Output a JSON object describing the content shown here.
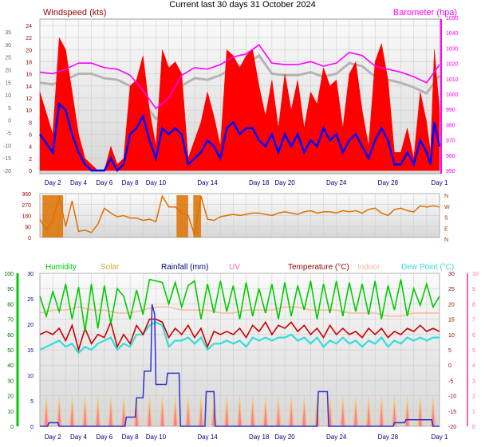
{
  "title": "Current last 30 days 31 October 2024",
  "colors": {
    "wind_avg": "#0000ff",
    "wind_gust": "#ff0000",
    "barometer": "#ff00ff",
    "baro_ghost": "#b4b4b4",
    "wind_dir": "#dd7100",
    "humidity": "#00cc00",
    "solar": "#ccaa33",
    "rain": "#3333cc",
    "uv": "#ff66aa",
    "temperature": "#cc0000",
    "indoor": "#ffb49c",
    "dewpoint": "#33dddd"
  },
  "x_ticks": [
    "Day 2",
    "Day 4",
    "Day 6",
    "Day 8",
    "Day 10",
    "Day 14",
    "Day 18",
    "Day 20",
    "Day 24",
    "Day 28",
    "Day 1"
  ],
  "x_tick_days": [
    2,
    4,
    6,
    8,
    10,
    14,
    18,
    20,
    24,
    28,
    32
  ],
  "chart_data": [
    {
      "type": "line",
      "name": "wind-barometer",
      "title_left": "Windspeed (kts)",
      "title_right": "Barometer (hpa)",
      "y_left_ticks": [
        "24",
        "22",
        "20",
        "18",
        "16",
        "14",
        "12",
        "10",
        "8",
        "6",
        "4",
        "2",
        "0"
      ],
      "y_outer_ticks": [
        "35",
        "30",
        "25",
        "20",
        "15",
        "10",
        "5",
        "0",
        "-5",
        "-10",
        "-15",
        "-20"
      ],
      "y_right_ticks": [
        "1050",
        "1040",
        "1030",
        "1020",
        "1010",
        "1000",
        "990",
        "980",
        "970",
        "960",
        "950"
      ],
      "ylim_left": [
        0,
        25
      ],
      "ylim_right": [
        948,
        1050
      ],
      "series": [
        {
          "name": "gust",
          "x": [
            1.0,
            2.0,
            2.5,
            3.0,
            3.5,
            4.0,
            4.5,
            5.0,
            5.5,
            6.0,
            6.5,
            7.0,
            7.5,
            8.0,
            8.5,
            9.0,
            9.5,
            10.0,
            10.5,
            11.0,
            11.5,
            12.0,
            12.5,
            13.0,
            13.5,
            14.0,
            14.5,
            15.0,
            15.5,
            16.0,
            16.5,
            17.0,
            17.5,
            18.0,
            18.5,
            19.0,
            19.5,
            20.0,
            20.5,
            21.0,
            21.5,
            22.0,
            22.5,
            23.0,
            23.5,
            24.0,
            24.5,
            25.0,
            25.5,
            26.0,
            26.5,
            27.0,
            27.5,
            28.0,
            28.5,
            29.0,
            29.5,
            30.0,
            30.5,
            31.0,
            31.3,
            31.6,
            32.0
          ],
          "values": [
            13,
            6,
            22,
            20,
            13,
            6,
            2,
            1,
            0,
            0,
            4,
            1,
            2,
            14,
            15,
            19,
            10,
            4,
            20,
            17,
            18,
            16,
            2,
            5,
            8,
            13,
            9,
            4,
            20,
            19,
            17,
            19,
            20,
            14,
            9,
            15,
            7,
            16,
            10,
            15,
            7,
            13,
            11,
            17,
            14,
            15,
            7,
            16,
            18,
            10,
            4,
            18,
            21,
            15,
            3,
            3,
            7,
            2,
            13,
            8,
            3,
            20,
            10
          ]
        },
        {
          "name": "average",
          "x": [
            1.0,
            2.0,
            2.5,
            3.0,
            3.5,
            4.0,
            4.5,
            5.0,
            5.5,
            6.0,
            6.5,
            7.0,
            7.5,
            8.0,
            8.5,
            9.0,
            9.5,
            10.0,
            10.5,
            11.0,
            11.5,
            12.0,
            12.5,
            13.0,
            13.5,
            14.0,
            14.5,
            15.0,
            15.5,
            16.0,
            16.5,
            17.0,
            17.5,
            18.0,
            18.5,
            19.0,
            19.5,
            20.0,
            20.5,
            21.0,
            21.5,
            22.0,
            22.5,
            23.0,
            23.5,
            24.0,
            24.5,
            25.0,
            25.5,
            26.0,
            26.5,
            27.0,
            27.5,
            28.0,
            28.5,
            29.0,
            29.5,
            30.0,
            30.5,
            31.0,
            31.3,
            31.6,
            32.0
          ],
          "values": [
            6,
            3,
            11,
            10,
            6,
            3,
            1,
            0,
            0,
            0,
            2,
            0,
            1,
            6,
            7,
            9,
            5,
            2,
            7,
            6,
            7,
            6,
            1,
            2,
            3,
            5,
            4,
            2,
            7,
            8,
            6,
            7,
            7,
            5,
            4,
            6,
            3,
            6,
            4,
            6,
            3,
            5,
            4,
            7,
            5,
            6,
            3,
            5,
            6,
            4,
            2,
            5,
            7,
            5,
            1,
            1,
            3,
            1,
            5,
            3,
            1,
            8,
            4
          ]
        },
        {
          "name": "barometer",
          "x": [
            1.0,
            2.0,
            3.0,
            4.0,
            5.0,
            6.0,
            7.0,
            8.0,
            9.0,
            10.0,
            11.0,
            12.0,
            13.0,
            14.0,
            15.0,
            16.0,
            17.0,
            18.0,
            19.0,
            20.0,
            21.0,
            22.0,
            23.0,
            24.0,
            25.0,
            26.0,
            27.0,
            28.0,
            29.0,
            30.0,
            31.0,
            32.0
          ],
          "values": [
            1015,
            1014,
            1017,
            1021,
            1021,
            1018,
            1017,
            1013,
            1003,
            991,
            998,
            1013,
            1018,
            1017,
            1020,
            1025,
            1027,
            1033,
            1021,
            1020,
            1020,
            1022,
            1019,
            1021,
            1028,
            1026,
            1019,
            1017,
            1015,
            1012,
            1008,
            1020
          ]
        }
      ]
    },
    {
      "type": "line",
      "name": "wind-direction",
      "y_left_ticks": [
        "360",
        "270",
        "180",
        "90",
        "0"
      ],
      "y_right_labels": [
        "N",
        "W",
        "S",
        "E",
        "N"
      ],
      "ylim": [
        0,
        360
      ],
      "series": [
        {
          "name": "direction",
          "x": [
            1.0,
            1.5,
            2.0,
            2.5,
            3.0,
            3.5,
            4.0,
            4.5,
            5.0,
            5.5,
            6.0,
            6.5,
            7.0,
            7.5,
            8.0,
            8.5,
            9.0,
            9.5,
            10.0,
            10.5,
            11.0,
            11.5,
            12.0,
            12.5,
            13.0,
            13.5,
            14.0,
            14.5,
            15.0,
            15.5,
            16.0,
            16.5,
            17.0,
            17.5,
            18.0,
            18.5,
            19.0,
            19.5,
            20.0,
            20.5,
            21.0,
            21.5,
            22.0,
            22.5,
            23.0,
            23.5,
            24.0,
            24.5,
            25.0,
            25.5,
            26.0,
            26.5,
            27.0,
            27.5,
            28.0,
            28.5,
            29.0,
            29.5,
            30.0,
            30.5,
            31.0,
            31.5,
            32.0
          ],
          "values": [
            150,
            60,
            140,
            340,
            90,
            300,
            50,
            60,
            40,
            110,
            240,
            200,
            170,
            180,
            160,
            160,
            140,
            150,
            130,
            340,
            250,
            250,
            200,
            180,
            20,
            340,
            150,
            140,
            170,
            180,
            190,
            180,
            190,
            200,
            200,
            190,
            180,
            200,
            210,
            200,
            190,
            210,
            220,
            200,
            210,
            210,
            200,
            220,
            210,
            220,
            200,
            230,
            240,
            200,
            180,
            230,
            240,
            220,
            210,
            260,
            250,
            260,
            250
          ]
        }
      ]
    },
    {
      "type": "line",
      "name": "multi",
      "legend": [
        "Humidity",
        "Solar",
        "Rainfall (mm)",
        "UV",
        "Temperature (°C)",
        "Indoor",
        "Dew Point (°C)"
      ],
      "y_hum_ticks": [
        "100",
        "90",
        "80",
        "70",
        "60",
        "50",
        "40",
        "30",
        "20",
        "10",
        "0"
      ],
      "y_rain_ticks": [
        "30",
        "25",
        "20",
        "15",
        "10",
        "5",
        "0"
      ],
      "y_temp_ticks": [
        "30",
        "25",
        "20",
        "15",
        "10",
        "5",
        "0",
        "-5",
        "-10",
        "-15",
        "-20"
      ],
      "y_uv_ticks": [
        "10",
        "9",
        "8",
        "7",
        "6",
        "5",
        "4",
        "3",
        "2",
        "1",
        "0"
      ],
      "series": [
        {
          "name": "humidity",
          "x": [
            1.0,
            1.5,
            2.0,
            2.5,
            3.0,
            3.5,
            4.0,
            4.5,
            5.0,
            5.5,
            6.0,
            6.5,
            7.0,
            7.5,
            8.0,
            8.5,
            9.0,
            9.5,
            10.0,
            10.5,
            11.0,
            11.5,
            12.0,
            12.5,
            13.0,
            13.5,
            14.0,
            14.5,
            15.0,
            15.5,
            16.0,
            16.5,
            17.0,
            17.5,
            18.0,
            18.5,
            19.0,
            19.5,
            20.0,
            20.5,
            21.0,
            21.5,
            22.0,
            22.5,
            23.0,
            23.5,
            24.0,
            24.5,
            25.0,
            25.5,
            26.0,
            26.5,
            27.0,
            27.5,
            28.0,
            28.5,
            29.0,
            29.5,
            30.0,
            30.5,
            31.0,
            31.5,
            32.0
          ],
          "values": [
            85,
            72,
            88,
            75,
            93,
            70,
            91,
            62,
            93,
            64,
            92,
            67,
            90,
            85,
            70,
            89,
            73,
            96,
            95,
            94,
            80,
            94,
            78,
            92,
            95,
            70,
            93,
            74,
            95,
            75,
            92,
            70,
            94,
            72,
            90,
            74,
            93,
            70,
            94,
            72,
            92,
            76,
            95,
            70,
            93,
            74,
            95,
            72,
            94,
            75,
            93,
            73,
            95,
            70,
            92,
            76,
            96,
            72,
            90,
            79,
            93,
            78,
            85
          ]
        },
        {
          "name": "temperature",
          "x": [
            1.0,
            1.5,
            2.0,
            2.5,
            3.0,
            3.5,
            4.0,
            4.5,
            5.0,
            5.5,
            6.0,
            6.5,
            7.0,
            7.5,
            8.0,
            8.5,
            9.0,
            9.5,
            10.0,
            10.5,
            11.0,
            11.5,
            12.0,
            12.5,
            13.0,
            13.5,
            14.0,
            14.5,
            15.0,
            15.5,
            16.0,
            16.5,
            17.0,
            17.5,
            18.0,
            18.5,
            19.0,
            19.5,
            20.0,
            20.5,
            21.0,
            21.5,
            22.0,
            22.5,
            23.0,
            23.5,
            24.0,
            24.5,
            25.0,
            25.5,
            26.0,
            26.5,
            27.0,
            27.5,
            28.0,
            28.5,
            29.0,
            29.5,
            30.0,
            30.5,
            31.0,
            31.5,
            32.0
          ],
          "values": [
            10,
            11,
            10,
            12,
            8,
            13,
            5,
            12,
            7,
            10,
            9,
            14,
            6,
            10,
            7,
            13,
            10,
            15,
            15,
            14,
            9,
            12,
            10,
            13,
            9,
            12,
            6,
            11,
            10,
            11,
            10,
            12,
            9,
            13,
            11,
            14,
            10,
            13,
            12,
            14,
            11,
            13,
            10,
            12,
            9,
            13,
            10,
            12,
            10,
            11,
            9,
            12,
            10,
            12,
            9,
            11,
            10,
            12,
            11,
            13,
            11,
            12,
            11
          ]
        },
        {
          "name": "dewpoint",
          "x": [
            1.0,
            1.5,
            2.0,
            2.5,
            3.0,
            3.5,
            4.0,
            4.5,
            5.0,
            5.5,
            6.0,
            6.5,
            7.0,
            7.5,
            8.0,
            8.5,
            9.0,
            9.5,
            10.0,
            10.5,
            11.0,
            11.5,
            12.0,
            12.5,
            13.0,
            13.5,
            14.0,
            14.5,
            15.0,
            15.5,
            16.0,
            16.5,
            17.0,
            17.5,
            18.0,
            18.5,
            19.0,
            19.5,
            20.0,
            20.5,
            21.0,
            21.5,
            22.0,
            22.5,
            23.0,
            23.5,
            24.0,
            24.5,
            25.0,
            25.5,
            26.0,
            26.5,
            27.0,
            27.5,
            28.0,
            28.5,
            29.0,
            29.5,
            30.0,
            30.5,
            31.0,
            31.5,
            32.0
          ],
          "values": [
            5,
            6,
            7,
            8,
            6,
            7,
            4,
            6,
            5,
            7,
            8,
            9,
            5,
            7,
            6,
            10,
            10,
            13,
            14,
            13,
            6,
            8,
            8,
            9,
            7,
            9,
            5,
            7,
            7,
            8,
            7,
            8,
            6,
            9,
            8,
            9,
            8,
            9,
            9,
            10,
            8,
            9,
            7,
            9,
            6,
            8,
            7,
            9,
            7,
            8,
            6,
            8,
            7,
            9,
            6,
            8,
            7,
            9,
            8,
            9,
            8,
            9,
            9
          ]
        },
        {
          "name": "indoor",
          "x": [
            1.0,
            2.0,
            3.0,
            4.0,
            5.0,
            6.0,
            7.0,
            8.0,
            9.0,
            10.0,
            11.0,
            12.0,
            13.0,
            14.0,
            15.0,
            16.0,
            17.0,
            18.0,
            19.0,
            20.0,
            21.0,
            22.0,
            23.0,
            24.0,
            25.0,
            26.0,
            27.0,
            28.0,
            29.0,
            30.0,
            31.0,
            32.0
          ],
          "values": [
            17,
            18,
            18,
            19,
            18,
            18,
            17,
            17,
            18,
            19,
            19,
            18,
            18,
            18,
            17,
            17,
            18,
            18,
            18,
            19,
            19,
            18,
            18,
            18,
            17,
            17,
            17,
            16,
            16,
            17,
            17,
            17
          ]
        },
        {
          "name": "rainfall",
          "x": [
            1.0,
            1.6,
            1.7,
            2.4,
            2.5,
            7.6,
            7.7,
            8.4,
            8.5,
            9.0,
            9.1,
            9.6,
            9.7,
            9.9,
            10.0,
            10.8,
            10.9,
            11.8,
            11.9,
            13.8,
            13.9,
            14.5,
            14.6,
            22.5,
            22.6,
            23.3,
            23.4,
            28.4,
            28.5,
            29.3,
            29.4,
            31.4,
            31.5,
            32.0
          ],
          "values": [
            0,
            0,
            0.7,
            0.7,
            0,
            0,
            1.8,
            1.8,
            5.6,
            5.6,
            10.8,
            10.8,
            23.9,
            22,
            8.2,
            8.2,
            10.4,
            10.4,
            0,
            0,
            6.8,
            6.8,
            0,
            0,
            6.8,
            6.8,
            0,
            0,
            0.7,
            0.7,
            1.3,
            1.3,
            0,
            0
          ]
        }
      ]
    }
  ]
}
